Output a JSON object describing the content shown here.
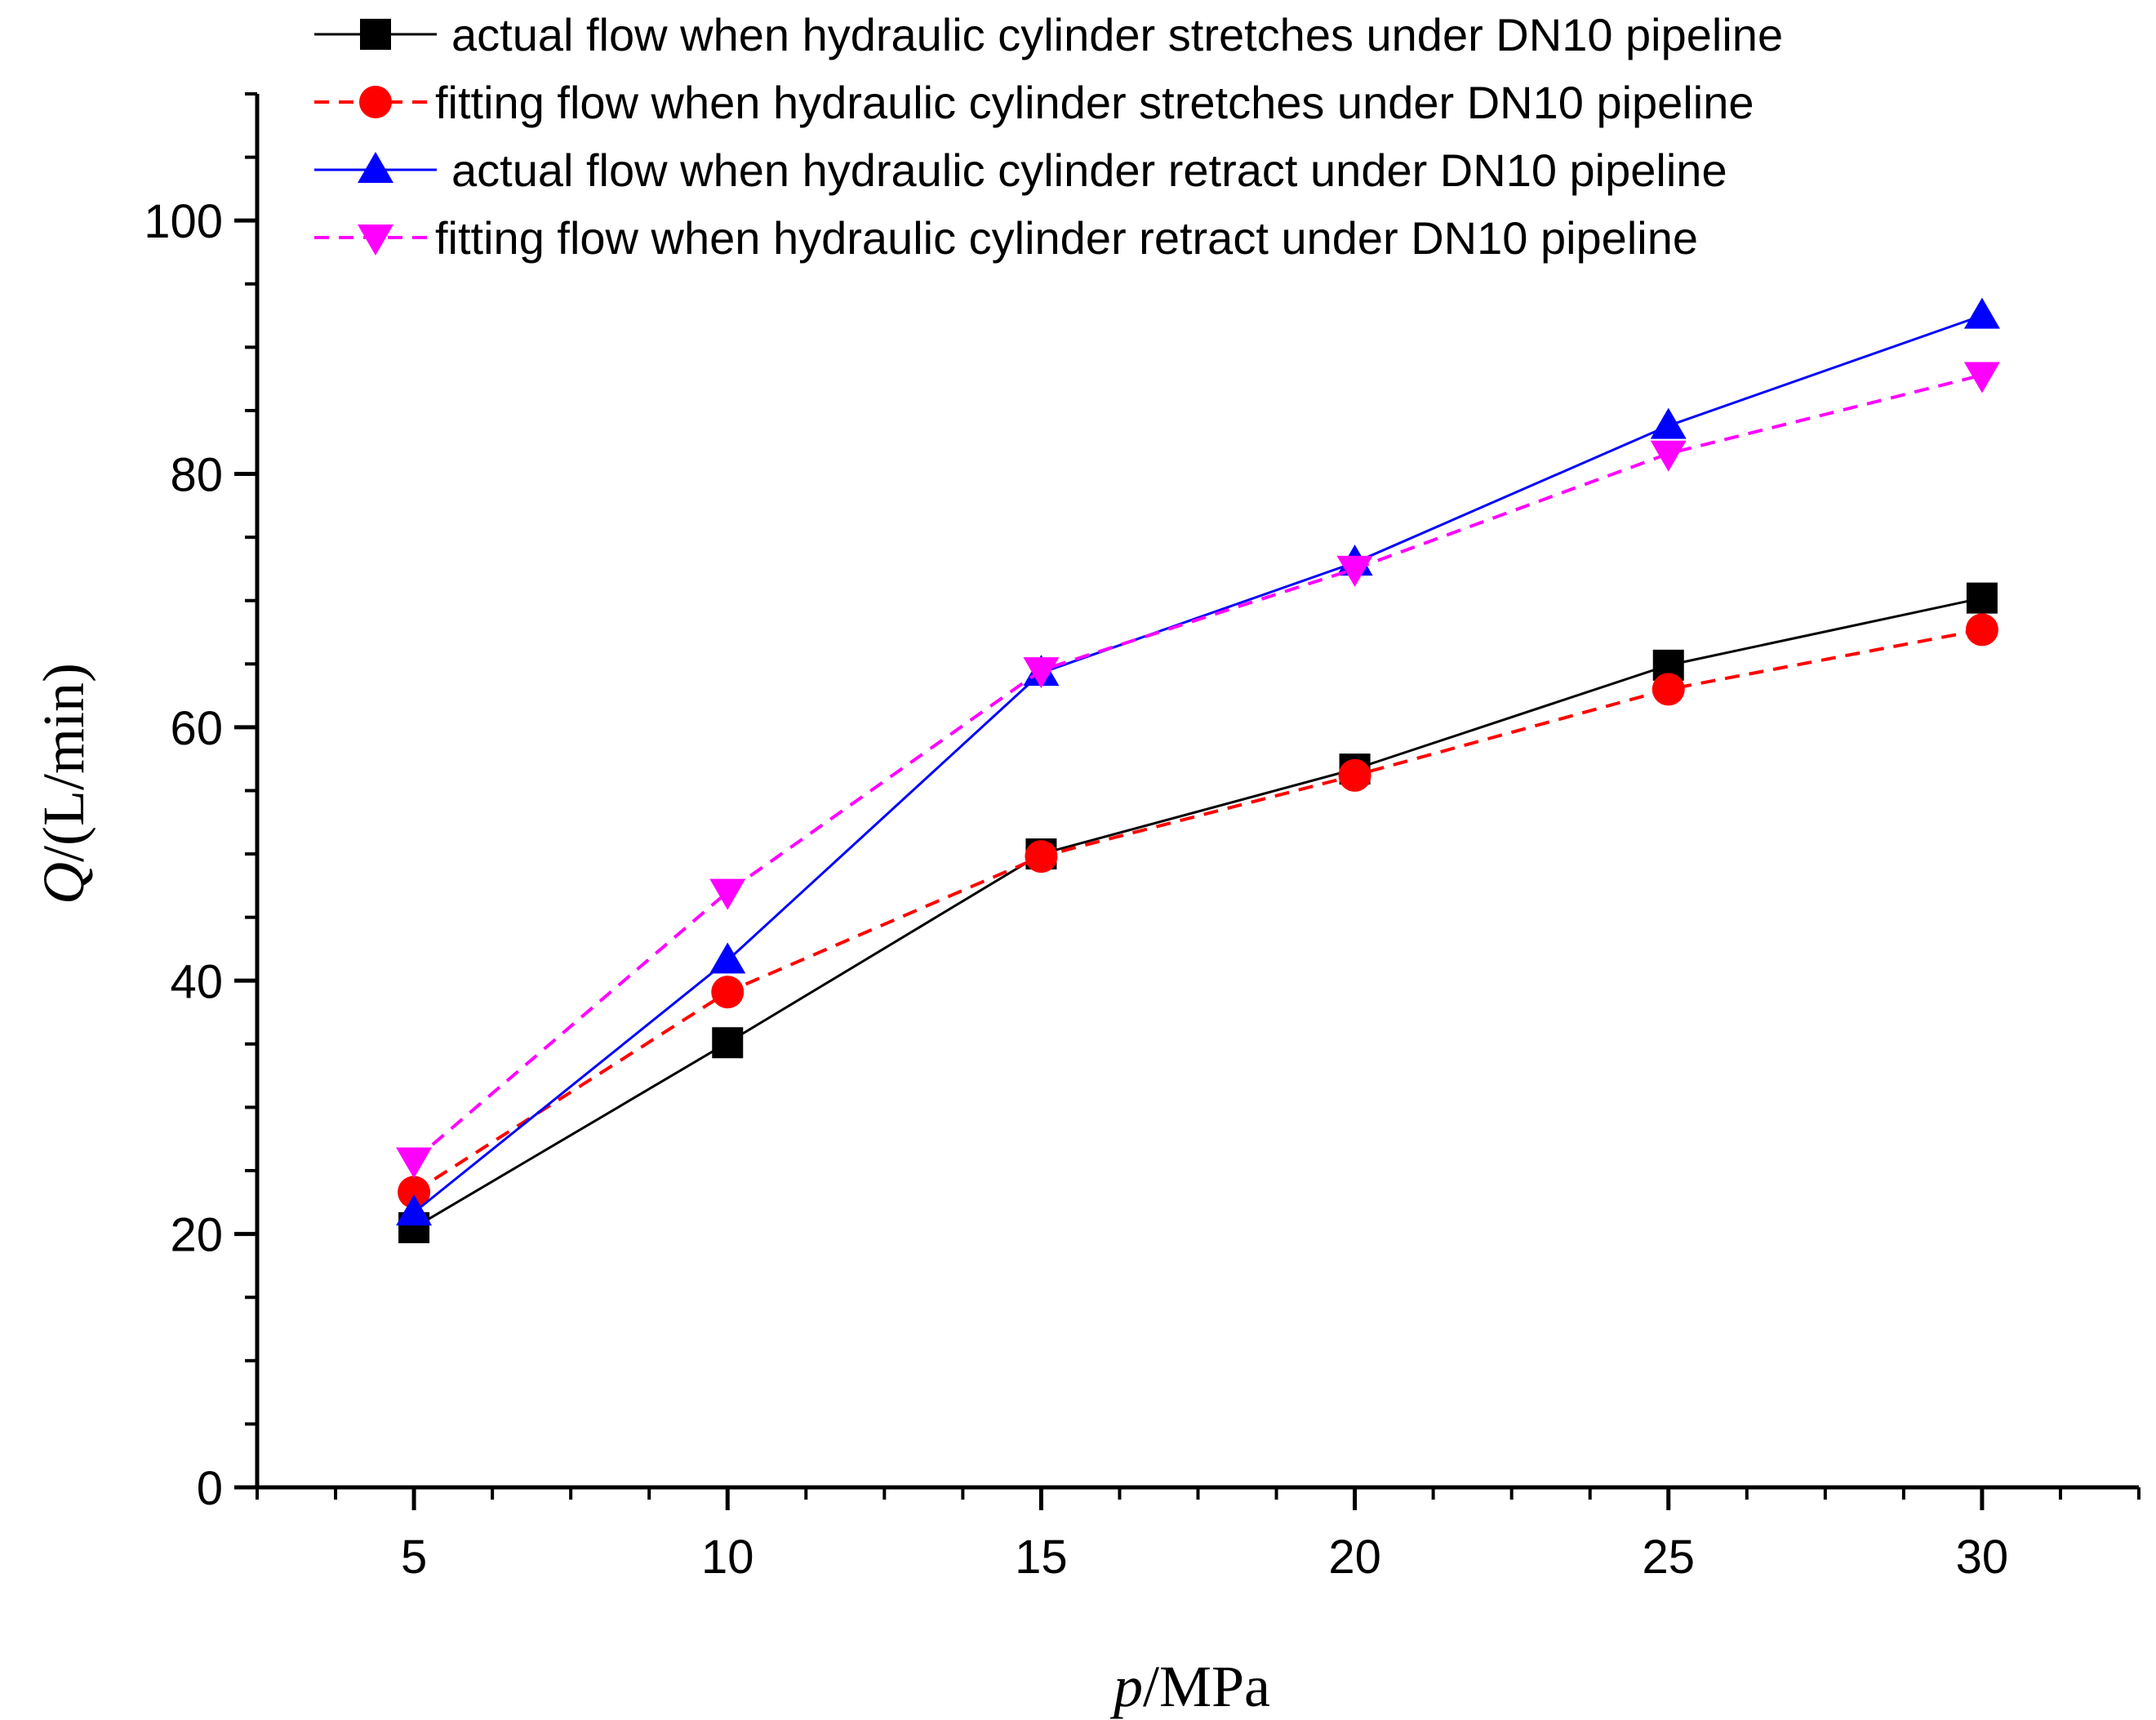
{
  "chart_data": {
    "type": "line",
    "title": "",
    "xlabel": {
      "italic": "p",
      "rest": "/MPa"
    },
    "ylabel": {
      "italic": "Q",
      "rest": "/(L/min)"
    },
    "xlim": [
      2.5,
      32.5
    ],
    "ylim": [
      0,
      110
    ],
    "x_ticks": [
      5,
      10,
      15,
      20,
      25,
      30
    ],
    "y_ticks": [
      0,
      20,
      40,
      60,
      80,
      100
    ],
    "x_tick_labels": [
      "5",
      "10",
      "15",
      "20",
      "25",
      "30"
    ],
    "y_tick_labels": [
      "0",
      "20",
      "40",
      "60",
      "80",
      "100"
    ],
    "grid": false,
    "legend_position": "top",
    "x": [
      5,
      10,
      15,
      20,
      25,
      30
    ],
    "series": [
      {
        "name": "actual flow when  hydraulic cylinder stretches under DN10 pipeline",
        "values": [
          20.5,
          35.1,
          50.0,
          56.7,
          64.9,
          70.2
        ],
        "color": "#000000",
        "marker": "square",
        "dashed": false
      },
      {
        "name": "fitting flow when  hydraulic cylinder stretches under DN10 pipeline",
        "values": [
          23.3,
          39.1,
          49.8,
          56.2,
          63.0,
          67.7
        ],
        "color": "#ff0000",
        "marker": "circle",
        "dashed": true
      },
      {
        "name": "actual flow when hydraulic cylinder retract under DN10 pipeline",
        "values": [
          21.7,
          41.6,
          64.3,
          73.0,
          83.8,
          92.5
        ],
        "color": "#0000ff",
        "marker": "triangle-up",
        "dashed": false
      },
      {
        "name": "fitting flow when  hydraulic cylinder retract under DN10 pipeline",
        "values": [
          25.8,
          47.0,
          64.5,
          72.5,
          81.6,
          87.8
        ],
        "color": "#ff00ff",
        "marker": "triangle-down",
        "dashed": true
      }
    ]
  }
}
